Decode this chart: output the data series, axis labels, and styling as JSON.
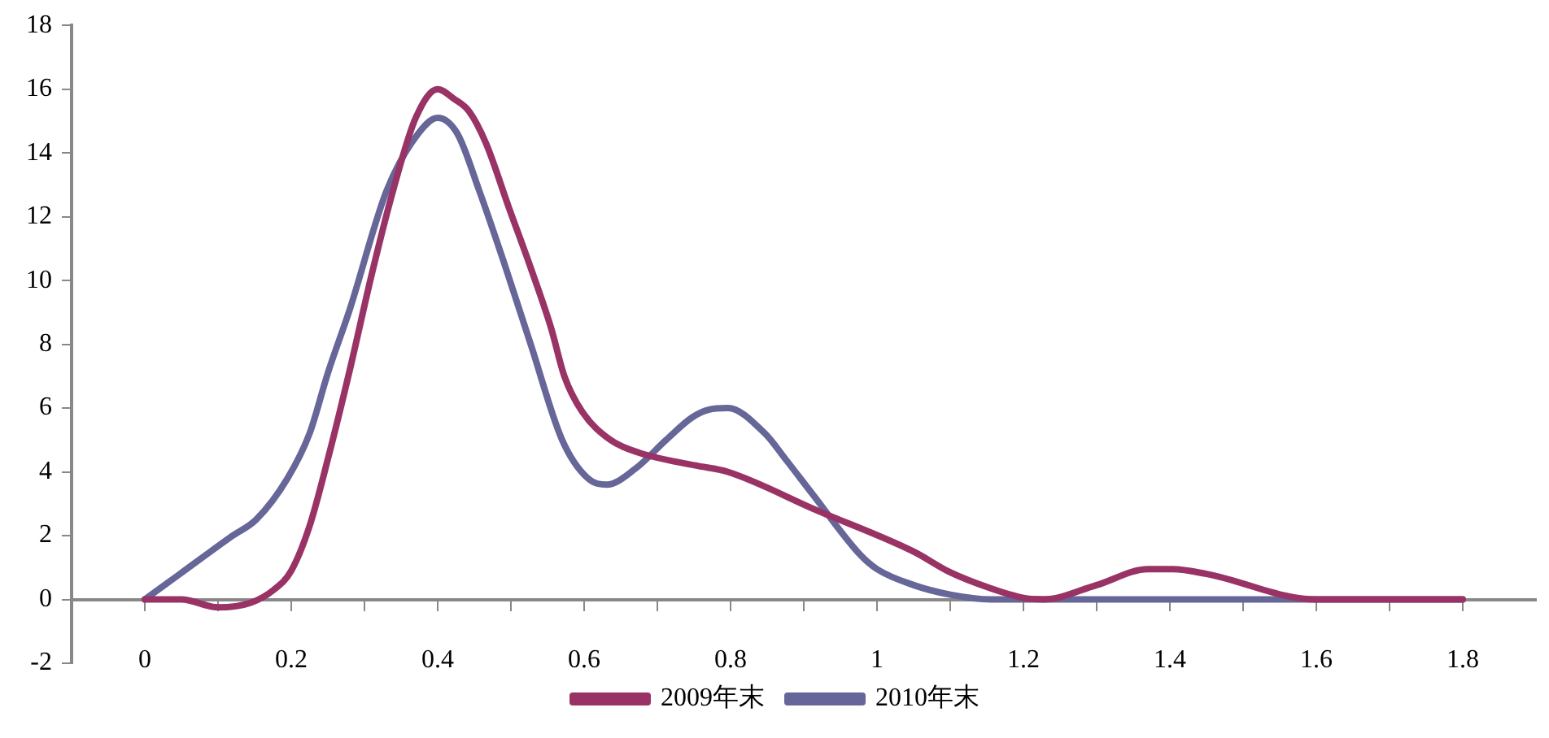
{
  "chart_data": {
    "type": "line",
    "legend": "bottom",
    "grid": false,
    "marker": "none",
    "line_style": "solid",
    "xlim": [
      -0.1,
      1.9
    ],
    "xticks": [
      0,
      {
        "value": 0.1,
        "label": null
      },
      0.2,
      {
        "value": 0.3,
        "label": null
      },
      0.4,
      {
        "value": 0.5,
        "label": null
      },
      0.6,
      {
        "value": 0.7,
        "label": null
      },
      0.8,
      {
        "value": 0.9,
        "label": null
      },
      1,
      {
        "value": 1.1,
        "label": null
      },
      1.2,
      {
        "value": 1.3,
        "label": null
      },
      1.4,
      {
        "value": 1.5,
        "label": null
      },
      1.6,
      {
        "value": 1.7,
        "label": null
      },
      1.8
    ],
    "ylim": [
      -2,
      18
    ],
    "yticks": [
      -2,
      0,
      2,
      4,
      6,
      8,
      10,
      12,
      14,
      16,
      18
    ],
    "series": [
      {
        "name": "2009年末",
        "color": "#993366",
        "x": [
          0,
          0.05,
          0.1,
          0.145,
          0.176,
          0.2,
          0.225,
          0.25,
          0.28,
          0.31,
          0.34,
          0.37,
          0.4,
          0.422,
          0.443,
          0.466,
          0.497,
          0.527,
          0.555,
          0.573,
          0.597,
          0.636,
          0.675,
          0.752,
          0.796,
          0.917,
          1.05,
          1.1,
          1.155,
          1.2,
          1.227,
          1.3,
          1.37,
          1.404,
          1.45,
          1.6,
          1.8
        ],
        "values": [
          0,
          0,
          -0.25,
          -0.1,
          0.3,
          0.9,
          2.3,
          4.4,
          7.2,
          10.2,
          12.9,
          15.1,
          16,
          15.7,
          15.3,
          14.3,
          12.3,
          10.4,
          8.5,
          7,
          5.9,
          5,
          4.6,
          4.2,
          4,
          2.8,
          1.5,
          0.85,
          0.35,
          0.05,
          0,
          0.45,
          0.95,
          0.95,
          0.8,
          0,
          0
        ]
      },
      {
        "name": "2010年末",
        "color": "#666699",
        "x": [
          0,
          0.048,
          0.12,
          0.152,
          0.195,
          0.225,
          0.25,
          0.28,
          0.33,
          0.37,
          0.4,
          0.427,
          0.457,
          0.49,
          0.527,
          0.57,
          0.605,
          0.631,
          0.67,
          0.712,
          0.747,
          0.77,
          0.796,
          0.847,
          0.875,
          0.912,
          0.977,
          1,
          1.05,
          1.1,
          1.155,
          1.8
        ],
        "values": [
          0,
          0.8,
          2,
          2.5,
          3.8,
          5.2,
          7.1,
          9.1,
          12.8,
          14.5,
          15.1,
          14.6,
          12.8,
          10.6,
          8,
          5,
          3.8,
          3.6,
          4.1,
          5,
          5.7,
          5.95,
          6,
          5.2,
          4.4,
          3.3,
          1.4,
          0.95,
          0.45,
          0.15,
          0,
          0
        ]
      }
    ]
  }
}
